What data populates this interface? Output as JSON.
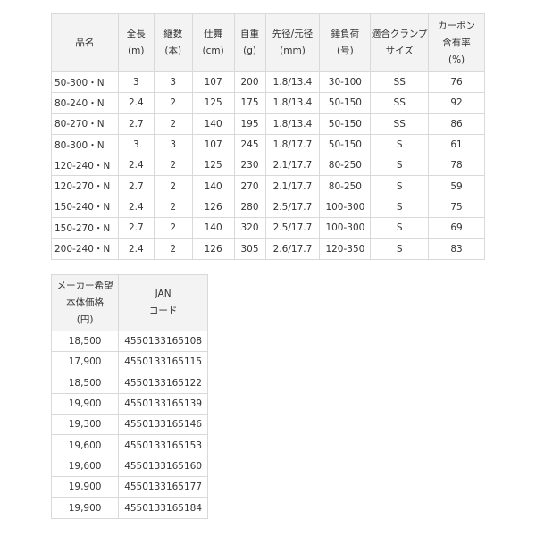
{
  "specs": {
    "headers": [
      [
        "品名"
      ],
      [
        "全長",
        "(m)"
      ],
      [
        "継数",
        "(本)"
      ],
      [
        "仕舞",
        "(cm)"
      ],
      [
        "自重",
        "(g)"
      ],
      [
        "先径/元径",
        "(mm)"
      ],
      [
        "錘負荷",
        "(号)"
      ],
      [
        "適合クランプ",
        "サイズ"
      ],
      [
        "カーボン",
        "含有率",
        "(%)"
      ]
    ],
    "rows": [
      [
        "50-300・N",
        "3",
        "3",
        "107",
        "200",
        "1.8/13.4",
        "30-100",
        "SS",
        "76"
      ],
      [
        "80-240・N",
        "2.4",
        "2",
        "125",
        "175",
        "1.8/13.4",
        "50-150",
        "SS",
        "92"
      ],
      [
        "80-270・N",
        "2.7",
        "2",
        "140",
        "195",
        "1.8/13.4",
        "50-150",
        "SS",
        "86"
      ],
      [
        "80-300・N",
        "3",
        "3",
        "107",
        "245",
        "1.8/17.7",
        "50-150",
        "S",
        "61"
      ],
      [
        "120-240・N",
        "2.4",
        "2",
        "125",
        "230",
        "2.1/17.7",
        "80-250",
        "S",
        "78"
      ],
      [
        "120-270・N",
        "2.7",
        "2",
        "140",
        "270",
        "2.1/17.7",
        "80-250",
        "S",
        "59"
      ],
      [
        "150-240・N",
        "2.4",
        "2",
        "126",
        "280",
        "2.5/17.7",
        "100-300",
        "S",
        "75"
      ],
      [
        "150-270・N",
        "2.7",
        "2",
        "140",
        "320",
        "2.5/17.7",
        "100-300",
        "S",
        "69"
      ],
      [
        "200-240・N",
        "2.4",
        "2",
        "126",
        "305",
        "2.6/17.7",
        "120-350",
        "S",
        "83"
      ]
    ]
  },
  "prices": {
    "headers": [
      [
        "メーカー希望",
        "本体価格",
        "(円)"
      ],
      [
        "JAN",
        "コード"
      ]
    ],
    "rows": [
      [
        "18,500",
        "4550133165108"
      ],
      [
        "17,900",
        "4550133165115"
      ],
      [
        "18,500",
        "4550133165122"
      ],
      [
        "19,900",
        "4550133165139"
      ],
      [
        "19,300",
        "4550133165146"
      ],
      [
        "19,600",
        "4550133165153"
      ],
      [
        "19,600",
        "4550133165160"
      ],
      [
        "19,900",
        "4550133165177"
      ],
      [
        "19,900",
        "4550133165184"
      ]
    ]
  }
}
